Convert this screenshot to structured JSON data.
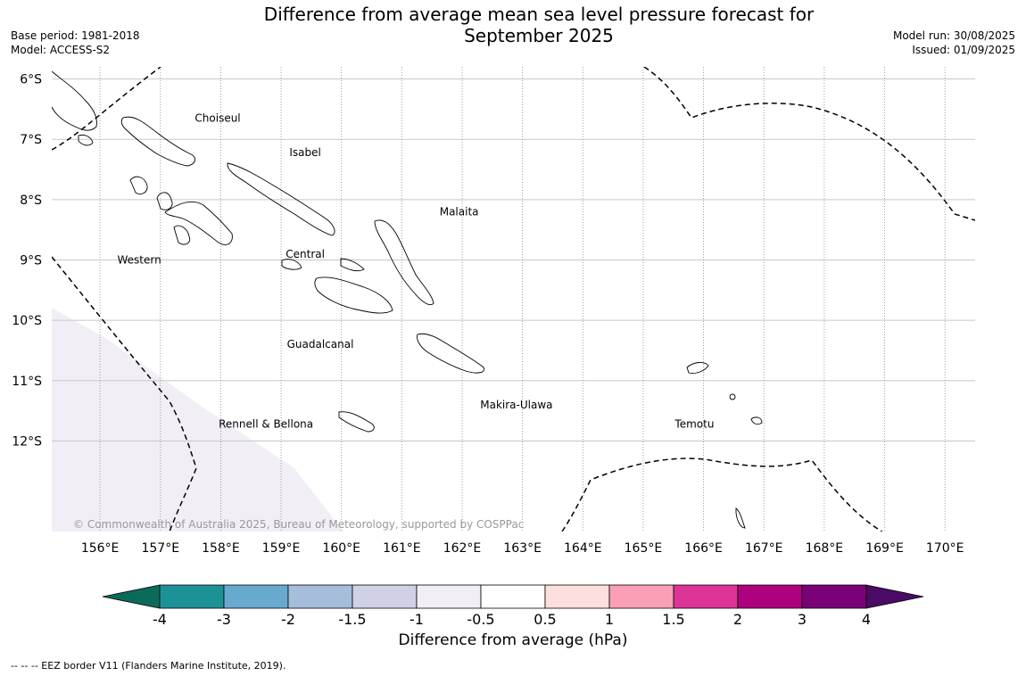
{
  "title": "Difference from average mean sea level pressure forecast for September 2025",
  "meta_left": [
    "Base period: 1981-2018",
    "Model: ACCESS-S2"
  ],
  "meta_right": [
    "Model run: 30/08/2025",
    "Issued: 01/09/2025"
  ],
  "map": {
    "lon_range": [
      155.2,
      170.5
    ],
    "lat_range": [
      -13.5,
      -5.8
    ],
    "lat_ticks": [
      {
        "value": -6,
        "label": "6°S"
      },
      {
        "value": -7,
        "label": "7°S"
      },
      {
        "value": -8,
        "label": "8°S"
      },
      {
        "value": -9,
        "label": "9°S"
      },
      {
        "value": -10,
        "label": "10°S"
      },
      {
        "value": -11,
        "label": "11°S"
      },
      {
        "value": -12,
        "label": "12°S"
      }
    ],
    "lon_ticks": [
      {
        "value": 156,
        "label": "156°E"
      },
      {
        "value": 157,
        "label": "157°E"
      },
      {
        "value": 158,
        "label": "158°E"
      },
      {
        "value": 159,
        "label": "159°E"
      },
      {
        "value": 160,
        "label": "160°E"
      },
      {
        "value": 161,
        "label": "161°E"
      },
      {
        "value": 162,
        "label": "162°E"
      },
      {
        "value": 163,
        "label": "163°E"
      },
      {
        "value": 164,
        "label": "164°E"
      },
      {
        "value": 165,
        "label": "165°E"
      },
      {
        "value": 166,
        "label": "166°E"
      },
      {
        "value": 167,
        "label": "167°E"
      },
      {
        "value": 168,
        "label": "168°E"
      },
      {
        "value": 169,
        "label": "169°E"
      },
      {
        "value": 170,
        "label": "170°E"
      }
    ],
    "province_labels": [
      {
        "name": "Choiseul",
        "lon": 157.95,
        "lat": -6.65
      },
      {
        "name": "Isabel",
        "lon": 159.4,
        "lat": -7.22
      },
      {
        "name": "Malaita",
        "lon": 161.95,
        "lat": -8.2
      },
      {
        "name": "Central",
        "lon": 159.4,
        "lat": -8.9
      },
      {
        "name": "Western",
        "lon": 156.65,
        "lat": -9.0
      },
      {
        "name": "Guadalcanal",
        "lon": 159.65,
        "lat": -10.4
      },
      {
        "name": "Makira-Ulawa",
        "lon": 162.9,
        "lat": -11.4
      },
      {
        "name": "Rennell & Bellona",
        "lon": 158.75,
        "lat": -11.72
      },
      {
        "name": "Temotu",
        "lon": 165.85,
        "lat": -11.72
      }
    ],
    "anomaly_region": {
      "category": "-1 to -0.5",
      "color": "#f2eef6"
    },
    "copyright": "© Commonwealth of Australia 2025, Bureau of Meteorology, supported by COSPPac"
  },
  "colorbar": {
    "label": "Difference from average (hPa)",
    "extend_low_color": "#0b6b5b",
    "extend_high_color": "#4a0a66",
    "segments": [
      {
        "color": "#1c9196"
      },
      {
        "color": "#67a9cf"
      },
      {
        "color": "#a6bddb"
      },
      {
        "color": "#d0d1e6"
      },
      {
        "color": "#f2eef6"
      },
      {
        "color": "#ffffff"
      },
      {
        "color": "#fde0dd"
      },
      {
        "color": "#fa9fb5"
      },
      {
        "color": "#dd3497"
      },
      {
        "color": "#ae017e"
      },
      {
        "color": "#7a0177"
      }
    ],
    "ticks": [
      "-4",
      "-3",
      "-2",
      "-1.5",
      "-1",
      "-0.5",
      "0.5",
      "1",
      "1.5",
      "2",
      "3",
      "4"
    ]
  },
  "footnote": "--  --  -- EEZ border V11 (Flanders Marine Institute, 2019)."
}
